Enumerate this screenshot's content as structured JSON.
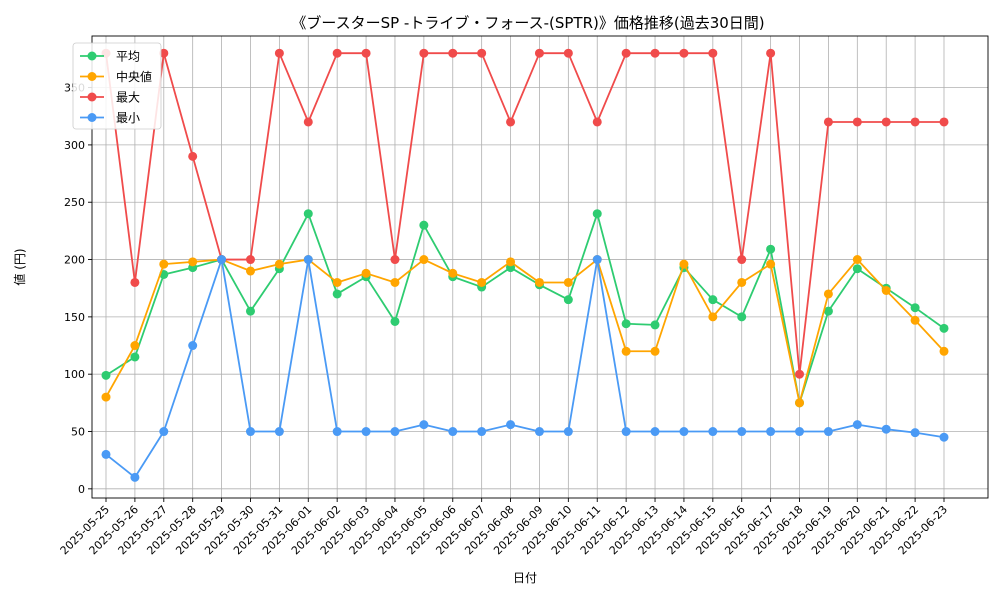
{
  "chart_data": {
    "type": "line",
    "title": "《ブースターSP -トライブ・フォース-(SPTR)》価格推移(過去30日間)",
    "xlabel": "日付",
    "ylabel": "値 (円)",
    "ylim": [
      -8,
      395
    ],
    "yticks": [
      0,
      50,
      100,
      150,
      200,
      250,
      300,
      350
    ],
    "grid": true,
    "legend_position": "top-left",
    "categories": [
      "2025-05-25",
      "2025-05-26",
      "2025-05-27",
      "2025-05-28",
      "2025-05-29",
      "2025-05-30",
      "2025-05-31",
      "2025-06-01",
      "2025-06-02",
      "2025-06-03",
      "2025-06-04",
      "2025-06-05",
      "2025-06-06",
      "2025-06-07",
      "2025-06-08",
      "2025-06-09",
      "2025-06-10",
      "2025-06-11",
      "2025-06-12",
      "2025-06-13",
      "2025-06-14",
      "2025-06-15",
      "2025-06-16",
      "2025-06-17",
      "2025-06-18",
      "2025-06-19",
      "2025-06-20",
      "2025-06-21",
      "2025-06-22",
      "2025-06-23"
    ],
    "series": [
      {
        "name": "平均",
        "color": "#2ecc71",
        "values": [
          99,
          115,
          187,
          193,
          200,
          155,
          192,
          240,
          170,
          185,
          146,
          230,
          185,
          176,
          193,
          178,
          165,
          240,
          144,
          143,
          193,
          165,
          150,
          209,
          75,
          155,
          192,
          175,
          158,
          140
        ]
      },
      {
        "name": "中央値",
        "color": "#ffa500",
        "values": [
          80,
          125,
          196,
          198,
          200,
          190,
          196,
          200,
          180,
          188,
          180,
          200,
          188,
          180,
          198,
          180,
          180,
          200,
          120,
          120,
          196,
          150,
          180,
          196,
          75,
          170,
          200,
          173,
          147,
          120
        ]
      },
      {
        "name": "最大",
        "color": "#f04b4b",
        "values": [
          380,
          180,
          380,
          290,
          200,
          200,
          380,
          320,
          380,
          380,
          200,
          380,
          380,
          380,
          320,
          380,
          380,
          320,
          380,
          380,
          380,
          380,
          200,
          380,
          100,
          320,
          320,
          320,
          320,
          320
        ]
      },
      {
        "name": "最小",
        "color": "#4a9af5",
        "values": [
          30,
          10,
          50,
          125,
          200,
          50,
          50,
          200,
          50,
          50,
          50,
          56,
          50,
          50,
          56,
          50,
          50,
          200,
          50,
          50,
          50,
          50,
          50,
          50,
          50,
          50,
          56,
          52,
          49,
          45
        ]
      }
    ]
  }
}
